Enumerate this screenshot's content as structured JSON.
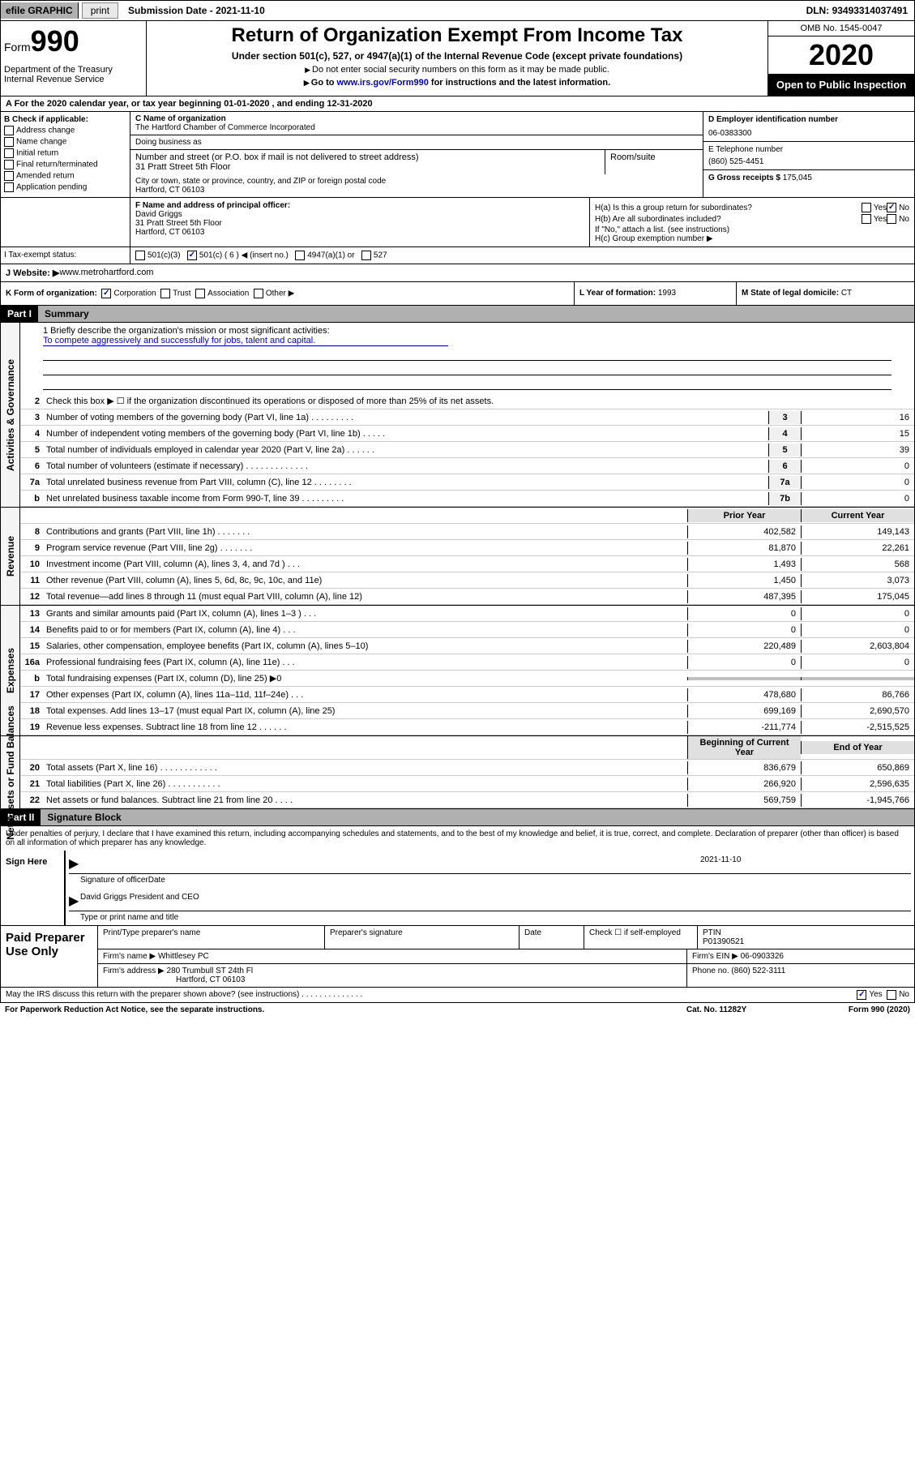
{
  "topbar": {
    "efile": "efile GRAPHIC",
    "print": "print",
    "submission_label": "Submission Date - ",
    "submission_date": "2021-11-10",
    "dln_label": "DLN: ",
    "dln": "93493314037491"
  },
  "header": {
    "form_label": "Form",
    "form_num": "990",
    "dept": "Department of the Treasury Internal Revenue Service",
    "title": "Return of Organization Exempt From Income Tax",
    "sub1": "Under section 501(c), 527, or 4947(a)(1) of the Internal Revenue Code (except private foundations)",
    "sub2": "Do not enter social security numbers on this form as it may be made public.",
    "sub3_pre": "Go to ",
    "sub3_link": "www.irs.gov/Form990",
    "sub3_post": " for instructions and the latest information.",
    "omb": "OMB No. 1545-0047",
    "year": "2020",
    "inspect": "Open to Public Inspection"
  },
  "row_a": "A For the 2020 calendar year, or tax year beginning 01-01-2020   , and ending 12-31-2020",
  "col_b": {
    "label": "B Check if applicable:",
    "opts": [
      "Address change",
      "Name change",
      "Initial return",
      "Final return/terminated",
      "Amended return",
      "Application pending"
    ]
  },
  "col_c": {
    "name_label": "C Name of organization",
    "name": "The Hartford Chamber of Commerce Incorporated",
    "dba_label": "Doing business as",
    "street_label": "Number and street (or P.O. box if mail is not delivered to street address)",
    "room_label": "Room/suite",
    "street": "31 Pratt Street 5th Floor",
    "city_label": "City or town, state or province, country, and ZIP or foreign postal code",
    "city": "Hartford, CT  06103"
  },
  "col_d": {
    "ein_label": "D Employer identification number",
    "ein": "06-0383300",
    "phone_label": "E Telephone number",
    "phone": "(860) 525-4451",
    "gross_label": "G Gross receipts $ ",
    "gross": "175,045"
  },
  "f": {
    "label": "F Name and address of principal officer:",
    "name": "David Griggs",
    "addr1": "31 Pratt Street 5th Floor",
    "addr2": "Hartford, CT  06103"
  },
  "h": {
    "ha": "H(a)  Is this a group return for subordinates?",
    "hb": "H(b)  Are all subordinates included?",
    "hb_note": "If \"No,\" attach a list. (see instructions)",
    "hc": "H(c)  Group exemption number ▶",
    "yes": "Yes",
    "no": "No"
  },
  "i": {
    "label": "I Tax-exempt status:",
    "o1": "501(c)(3)",
    "o2": "501(c) ( 6 ) ◀ (insert no.)",
    "o3": "4947(a)(1) or",
    "o4": "527"
  },
  "j": {
    "label": "J Website: ▶",
    "url": " www.metrohartford.com"
  },
  "k": {
    "label": "K Form of organization:",
    "corp": "Corporation",
    "trust": "Trust",
    "assoc": "Association",
    "other": "Other ▶",
    "l_label": "L Year of formation: ",
    "l_val": "1993",
    "m_label": "M State of legal domicile: ",
    "m_val": "CT"
  },
  "part1": {
    "label": "Part I",
    "title": "Summary"
  },
  "mission": {
    "line1": "1  Briefly describe the organization's mission or most significant activities:",
    "text": "To compete aggressively and successfully for jobs, talent and capital."
  },
  "lines_gov": [
    {
      "n": "2",
      "t": "Check this box ▶ ☐  if the organization discontinued its operations or disposed of more than 25% of its net assets."
    },
    {
      "n": "3",
      "t": "Number of voting members of the governing body (Part VI, line 1a)  .   .   .   .   .   .   .   .   .",
      "b": "3",
      "v": "16"
    },
    {
      "n": "4",
      "t": "Number of independent voting members of the governing body (Part VI, line 1b)  .   .   .   .   .",
      "b": "4",
      "v": "15"
    },
    {
      "n": "5",
      "t": "Total number of individuals employed in calendar year 2020 (Part V, line 2a)  .   .   .   .   .   .",
      "b": "5",
      "v": "39"
    },
    {
      "n": "6",
      "t": "Total number of volunteers (estimate if necessary)  .   .   .   .   .   .   .   .   .   .   .   .   .",
      "b": "6",
      "v": "0"
    },
    {
      "n": "7a",
      "t": "Total unrelated business revenue from Part VIII, column (C), line 12  .   .   .   .   .   .   .   .",
      "b": "7a",
      "v": "0"
    },
    {
      "n": "b",
      "t": "Net unrelated business taxable income from Form 990-T, line 39  .   .   .   .   .   .   .   .   .",
      "b": "7b",
      "v": "0"
    }
  ],
  "col_headers": {
    "prior": "Prior Year",
    "current": "Current Year",
    "beg": "Beginning of Current Year",
    "end": "End of Year"
  },
  "lines_rev": [
    {
      "n": "8",
      "t": "Contributions and grants (Part VIII, line 1h)  .   .   .   .   .   .   .",
      "p": "402,582",
      "c": "149,143"
    },
    {
      "n": "9",
      "t": "Program service revenue (Part VIII, line 2g)  .   .   .   .   .   .   .",
      "p": "81,870",
      "c": "22,261"
    },
    {
      "n": "10",
      "t": "Investment income (Part VIII, column (A), lines 3, 4, and 7d )  .   .   .",
      "p": "1,493",
      "c": "568"
    },
    {
      "n": "11",
      "t": "Other revenue (Part VIII, column (A), lines 5, 6d, 8c, 9c, 10c, and 11e)",
      "p": "1,450",
      "c": "3,073"
    },
    {
      "n": "12",
      "t": "Total revenue—add lines 8 through 11 (must equal Part VIII, column (A), line 12)",
      "p": "487,395",
      "c": "175,045"
    }
  ],
  "lines_exp": [
    {
      "n": "13",
      "t": "Grants and similar amounts paid (Part IX, column (A), lines 1–3 )  .   .   .",
      "p": "0",
      "c": "0"
    },
    {
      "n": "14",
      "t": "Benefits paid to or for members (Part IX, column (A), line 4)  .   .   .",
      "p": "0",
      "c": "0"
    },
    {
      "n": "15",
      "t": "Salaries, other compensation, employee benefits (Part IX, column (A), lines 5–10)",
      "p": "220,489",
      "c": "2,603,804"
    },
    {
      "n": "16a",
      "t": "Professional fundraising fees (Part IX, column (A), line 11e)  .   .   .",
      "p": "0",
      "c": "0"
    },
    {
      "n": "b",
      "t": "Total fundraising expenses (Part IX, column (D), line 25) ▶0",
      "p": "",
      "c": "",
      "shade": true
    },
    {
      "n": "17",
      "t": "Other expenses (Part IX, column (A), lines 11a–11d, 11f–24e)  .   .   .",
      "p": "478,680",
      "c": "86,766"
    },
    {
      "n": "18",
      "t": "Total expenses. Add lines 13–17 (must equal Part IX, column (A), line 25)",
      "p": "699,169",
      "c": "2,690,570"
    },
    {
      "n": "19",
      "t": "Revenue less expenses. Subtract line 18 from line 12  .   .   .   .   .   .",
      "p": "-211,774",
      "c": "-2,515,525"
    }
  ],
  "lines_net": [
    {
      "n": "20",
      "t": "Total assets (Part X, line 16)  .   .   .   .   .   .   .   .   .   .   .   .",
      "p": "836,679",
      "c": "650,869"
    },
    {
      "n": "21",
      "t": "Total liabilities (Part X, line 26)   .   .   .   .   .   .   .   .   .   .   .",
      "p": "266,920",
      "c": "2,596,635"
    },
    {
      "n": "22",
      "t": "Net assets or fund balances. Subtract line 21 from line 20  .   .   .   .",
      "p": "569,759",
      "c": "-1,945,766"
    }
  ],
  "sides": {
    "gov": "Activities & Governance",
    "rev": "Revenue",
    "exp": "Expenses",
    "net": "Net Assets or Fund Balances"
  },
  "part2": {
    "label": "Part II",
    "title": "Signature Block"
  },
  "perjury": "Under penalties of perjury, I declare that I have examined this return, including accompanying schedules and statements, and to the best of my knowledge and belief, it is true, correct, and complete. Declaration of preparer (other than officer) is based on all information of which preparer has any knowledge.",
  "sign": {
    "here": "Sign Here",
    "sig_label": "Signature of officer",
    "date_label": "Date",
    "date": "2021-11-10",
    "name": "David Griggs  President and CEO",
    "name_label": "Type or print name and title"
  },
  "prep": {
    "label": "Paid Preparer Use Only",
    "h1": "Print/Type preparer's name",
    "h2": "Preparer's signature",
    "h3": "Date",
    "h4": "Check ☐ if self-employed",
    "h5_label": "PTIN",
    "h5": "P01390521",
    "firm_label": "Firm's name   ▶ ",
    "firm": "Whittlesey PC",
    "ein_label": "Firm's EIN ▶ ",
    "ein": "06-0903326",
    "addr_label": "Firm's address ▶ ",
    "addr1": "280 Trumbull ST 24th Fl",
    "addr2": "Hartford, CT  06103",
    "phone_label": "Phone no. ",
    "phone": "(860) 522-3111"
  },
  "footer": {
    "discuss": "May the IRS discuss this return with the preparer shown above? (see instructions)   .   .   .   .   .   .   .   .   .   .   .   .   .   .",
    "yes": "Yes",
    "no": "No"
  },
  "bottom": {
    "pra": "For Paperwork Reduction Act Notice, see the separate instructions.",
    "cat": "Cat. No. 11282Y",
    "form": "Form 990 (2020)"
  }
}
